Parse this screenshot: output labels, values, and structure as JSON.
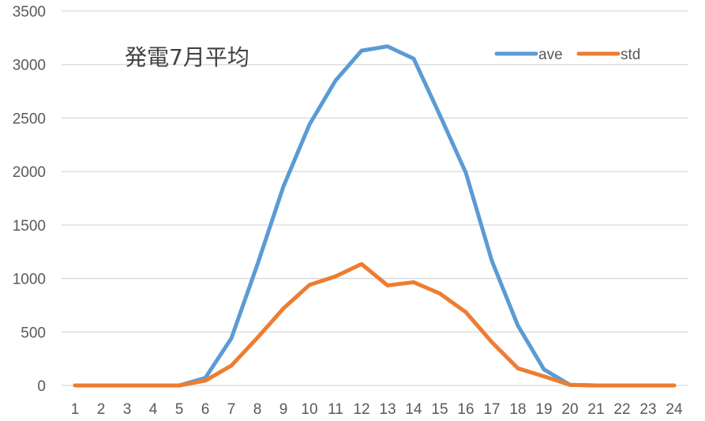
{
  "chart_data": {
    "type": "line",
    "title": "発電7月平均",
    "xlabel": "",
    "ylabel": "",
    "x": [
      1,
      2,
      3,
      4,
      5,
      6,
      7,
      8,
      9,
      10,
      11,
      12,
      13,
      14,
      15,
      16,
      17,
      18,
      19,
      20,
      21,
      22,
      23,
      24
    ],
    "categories": [
      "1",
      "2",
      "3",
      "4",
      "5",
      "6",
      "7",
      "8",
      "9",
      "10",
      "11",
      "12",
      "13",
      "14",
      "15",
      "16",
      "17",
      "18",
      "19",
      "20",
      "21",
      "22",
      "23",
      "24"
    ],
    "yticks": [
      0,
      500,
      1000,
      1500,
      2000,
      2500,
      3000,
      3500
    ],
    "ylim": [
      0,
      3500
    ],
    "grid": true,
    "legend_position": "top-right",
    "series": [
      {
        "name": "ave",
        "color": "#5B9BD5",
        "values": [
          0,
          0,
          0,
          0,
          0,
          70,
          440,
          1130,
          1860,
          2440,
          2850,
          3130,
          3170,
          3055,
          2530,
          1990,
          1165,
          560,
          150,
          5,
          0,
          0,
          0,
          0
        ]
      },
      {
        "name": "std",
        "color": "#ED7D31",
        "values": [
          0,
          0,
          0,
          0,
          0,
          45,
          185,
          445,
          720,
          940,
          1020,
          1135,
          935,
          965,
          860,
          685,
          405,
          160,
          85,
          5,
          0,
          0,
          0,
          0
        ]
      }
    ]
  },
  "colors": {
    "grid": "#D9D9D9",
    "text": "#595959"
  }
}
